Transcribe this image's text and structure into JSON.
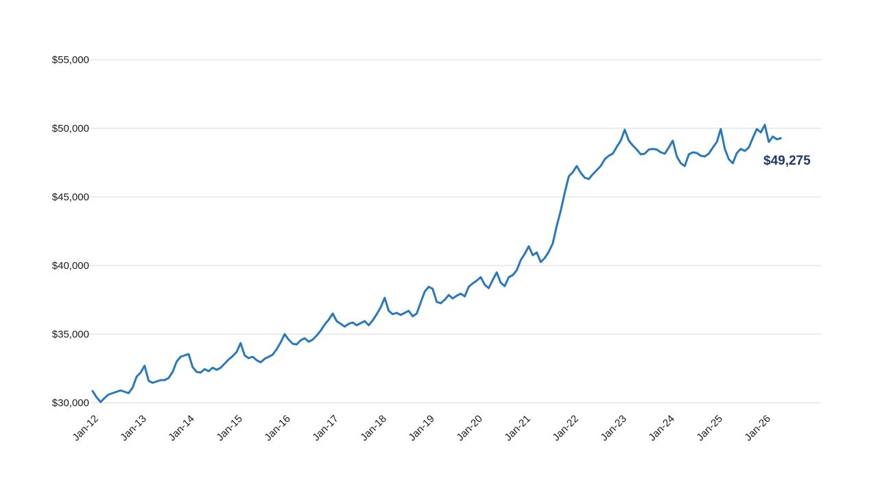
{
  "chart_data": {
    "type": "line",
    "title": "",
    "xlabel": "",
    "ylabel": "",
    "grid": "horizontal-only",
    "legend": "none",
    "x_start": "Jan-2012",
    "frequency": "monthly",
    "x_tick_labels": [
      "Jan-12",
      "Jan-13",
      "Jan-14",
      "Jan-15",
      "Jan-16",
      "Jan-17",
      "Jan-18",
      "Jan-19",
      "Jan-20",
      "Jan-21",
      "Jan-22",
      "Jan-23",
      "Jan-24",
      "Jan-25",
      "Jan-26"
    ],
    "y_ticks": [
      {
        "label": "$30,000",
        "value": 30000
      },
      {
        "label": "$35,000",
        "value": 35000
      },
      {
        "label": "$40,000",
        "value": 40000
      },
      {
        "label": "$45,000",
        "value": 45000
      },
      {
        "label": "$50,000",
        "value": 50000
      },
      {
        "label": "$55,000",
        "value": 55000
      }
    ],
    "ylim": [
      30000,
      55000
    ],
    "values": [
      30850,
      30400,
      30050,
      30350,
      30600,
      30700,
      30800,
      30900,
      30800,
      30700,
      31100,
      31900,
      32200,
      32700,
      31600,
      31450,
      31550,
      31650,
      31650,
      31800,
      32250,
      33000,
      33350,
      33450,
      33550,
      32600,
      32250,
      32200,
      32450,
      32300,
      32550,
      32400,
      32550,
      32850,
      33150,
      33400,
      33700,
      34350,
      33450,
      33250,
      33350,
      33100,
      32950,
      33200,
      33350,
      33500,
      33900,
      34400,
      35000,
      34600,
      34300,
      34250,
      34550,
      34700,
      34450,
      34600,
      34900,
      35250,
      35700,
      36050,
      36500,
      35950,
      35750,
      35550,
      35750,
      35850,
      35650,
      35800,
      35950,
      35650,
      36000,
      36450,
      36950,
      37650,
      36700,
      36450,
      36550,
      36400,
      36550,
      36700,
      36300,
      36500,
      37300,
      38100,
      38450,
      38300,
      37350,
      37250,
      37500,
      37850,
      37600,
      37800,
      37950,
      37750,
      38450,
      38700,
      38900,
      39150,
      38600,
      38350,
      38950,
      39500,
      38750,
      38500,
      39150,
      39300,
      39650,
      40400,
      40850,
      41400,
      40750,
      40950,
      40250,
      40550,
      41000,
      41600,
      42900,
      44000,
      45300,
      46500,
      46800,
      47250,
      46750,
      46400,
      46300,
      46650,
      46950,
      47250,
      47750,
      48000,
      48150,
      48650,
      49100,
      49900,
      49100,
      48750,
      48450,
      48100,
      48150,
      48450,
      48500,
      48450,
      48250,
      48150,
      48600,
      49100,
      47950,
      47450,
      47250,
      48100,
      48250,
      48200,
      48000,
      47950,
      48150,
      48600,
      49000,
      49950,
      48500,
      47750,
      47450,
      48200,
      48500,
      48350,
      48600,
      49300,
      49950,
      49700,
      50250,
      49000,
      49400,
      49200,
      49275
    ],
    "last_point_label": "$49,275",
    "colors": {
      "line": "#2878BE",
      "last_label": "#1F3864",
      "gridline": "#D9D9D9",
      "axis_text": "#1A1A1A",
      "background": "#FFFFFF"
    }
  }
}
